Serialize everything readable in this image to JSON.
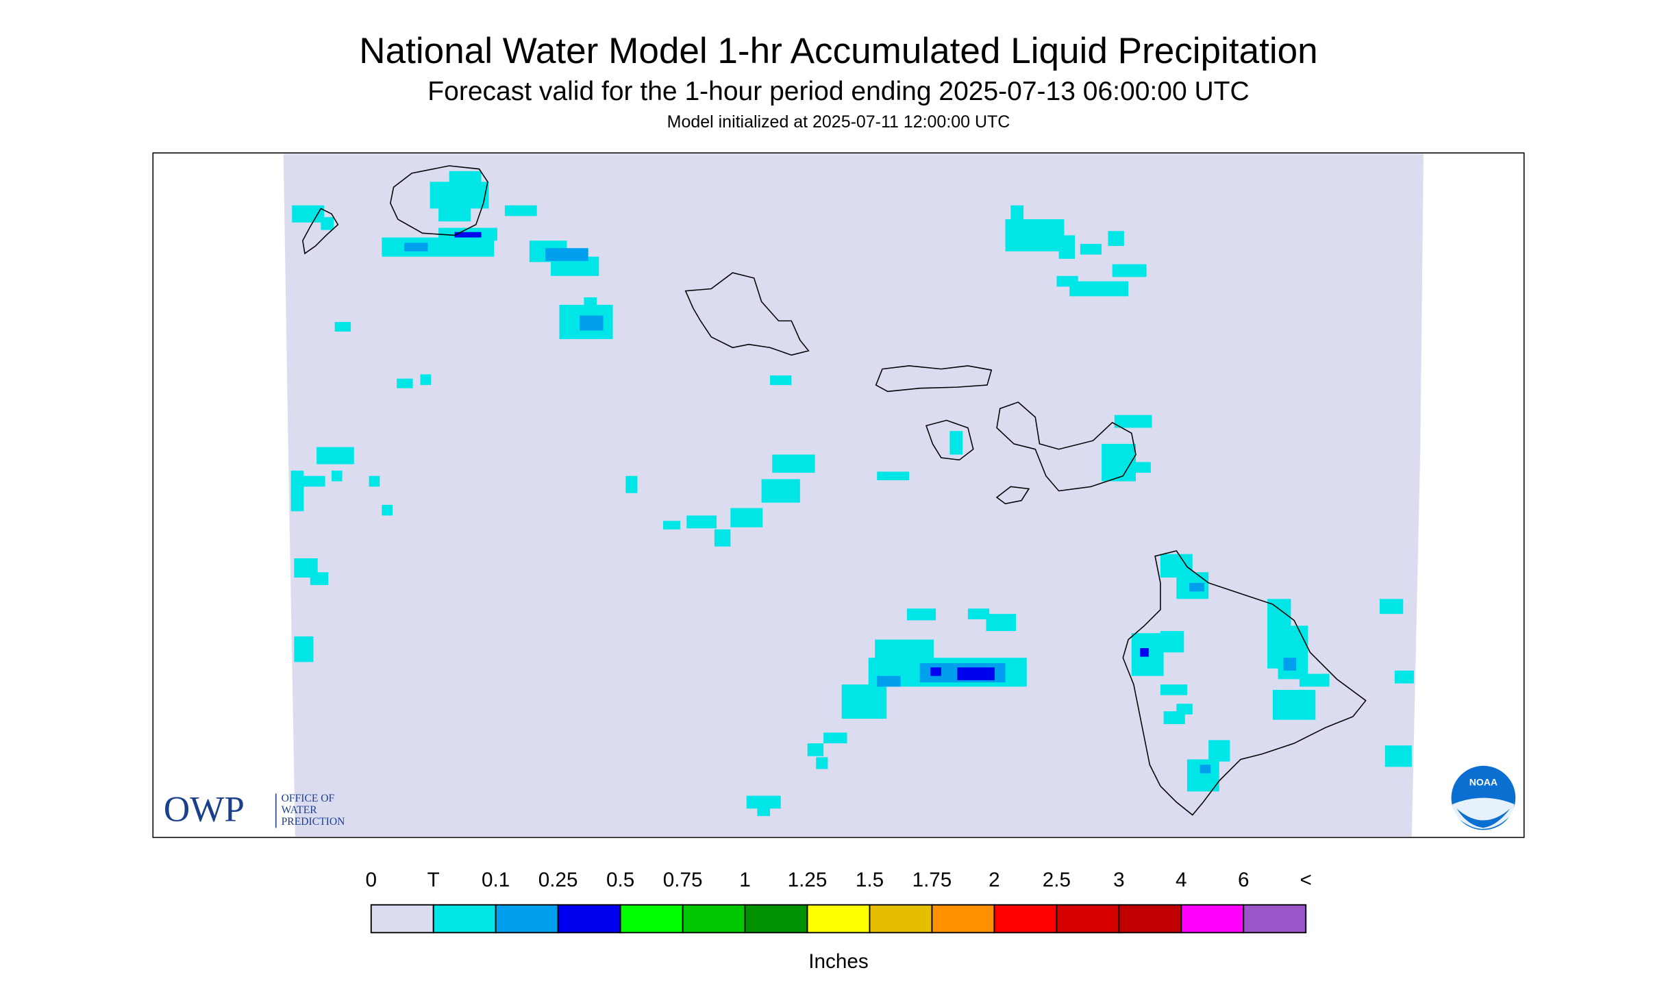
{
  "header": {
    "title": "National Water Model 1-hr Accumulated Liquid Precipitation",
    "subtitle": "Forecast valid for the 1-hour period ending 2025-07-13 06:00:00 UTC",
    "init": "Model initialized at 2025-07-11 12:00:00 UTC"
  },
  "legend": {
    "labels": [
      "0",
      "T",
      "0.1",
      "0.25",
      "0.5",
      "0.75",
      "1",
      "1.25",
      "1.5",
      "1.75",
      "2",
      "2.5",
      "3",
      "4",
      "6",
      "<"
    ],
    "colors": [
      "#dcdcf0",
      "#00e6e6",
      "#009fee",
      "#0000f0",
      "#00ff00",
      "#00c800",
      "#009000",
      "#ffff00",
      "#e6be00",
      "#ff9000",
      "#ff0000",
      "#d60000",
      "#c00000",
      "#ff00ff",
      "#9955c9"
    ],
    "unit": "Inches"
  },
  "logos": {
    "owp": "OWP",
    "office_lines": [
      "OFFICE OF",
      "WATER",
      "PREDICTION"
    ],
    "noaa": "NOAA"
  }
}
